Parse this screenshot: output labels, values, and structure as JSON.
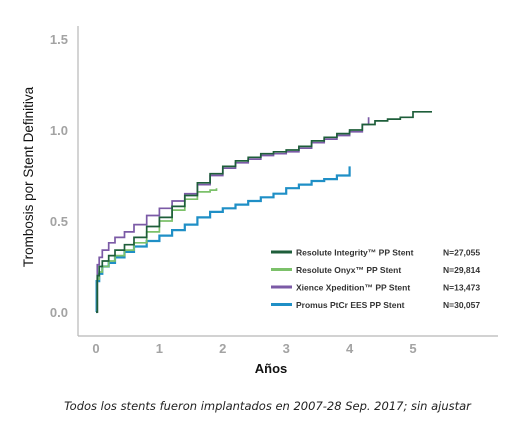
{
  "chart_data": {
    "type": "line",
    "title": "",
    "xlabel": "Años",
    "ylabel": "Trombosis por Stent Definitiva",
    "xlim": [
      0,
      5.5
    ],
    "ylim": [
      0,
      1.5
    ],
    "x_ticks": [
      0,
      1,
      2,
      3,
      4,
      5
    ],
    "x_tick_labels": [
      "0",
      "1",
      "2",
      "3",
      "4",
      "5"
    ],
    "y_ticks": [
      0.0,
      0.5,
      1.0,
      1.5
    ],
    "y_tick_labels": [
      "0.0",
      "0.5",
      "1.0",
      "1.5"
    ],
    "grid": false,
    "legend_position": "bottom-right",
    "series": [
      {
        "name": "Resolute Integrity™ PP Stent",
        "n": "N=27,055",
        "color": "#1e5e3a",
        "x": [
          0,
          0.02,
          0.05,
          0.1,
          0.2,
          0.3,
          0.45,
          0.6,
          0.8,
          1.0,
          1.2,
          1.4,
          1.6,
          1.8,
          2.0,
          2.2,
          2.4,
          2.6,
          2.8,
          3.0,
          3.2,
          3.4,
          3.6,
          3.8,
          4.0,
          4.2,
          4.4,
          4.6,
          4.8,
          5.0,
          5.3
        ],
        "y": [
          0.0,
          0.2,
          0.25,
          0.28,
          0.31,
          0.34,
          0.37,
          0.41,
          0.47,
          0.52,
          0.58,
          0.64,
          0.71,
          0.76,
          0.8,
          0.83,
          0.85,
          0.87,
          0.88,
          0.89,
          0.91,
          0.94,
          0.96,
          0.98,
          1.0,
          1.03,
          1.05,
          1.06,
          1.07,
          1.1,
          1.1
        ]
      },
      {
        "name": "Resolute Onyx™ PP Stent",
        "n": "N=29,814",
        "color": "#7cc16a",
        "x": [
          0,
          0.02,
          0.05,
          0.1,
          0.2,
          0.3,
          0.45,
          0.6,
          0.8,
          1.0,
          1.2,
          1.4,
          1.6,
          1.8,
          1.9
        ],
        "y": [
          0.0,
          0.18,
          0.22,
          0.25,
          0.28,
          0.31,
          0.34,
          0.38,
          0.44,
          0.5,
          0.56,
          0.62,
          0.66,
          0.67,
          0.68
        ]
      },
      {
        "name": "Xience Xpedition™ PP Stent",
        "n": "N=13,473",
        "color": "#7b5aa6",
        "x": [
          0,
          0.02,
          0.05,
          0.1,
          0.2,
          0.3,
          0.45,
          0.6,
          0.8,
          1.0,
          1.2,
          1.4,
          1.6,
          1.8,
          2.0,
          2.2,
          2.4,
          2.6,
          2.8,
          3.0,
          3.2,
          3.4,
          3.6,
          3.8,
          4.0,
          4.2,
          4.3
        ],
        "y": [
          0.0,
          0.26,
          0.3,
          0.34,
          0.38,
          0.41,
          0.44,
          0.48,
          0.53,
          0.57,
          0.61,
          0.65,
          0.7,
          0.75,
          0.79,
          0.82,
          0.84,
          0.86,
          0.87,
          0.88,
          0.9,
          0.93,
          0.95,
          0.97,
          0.99,
          1.03,
          1.07
        ]
      },
      {
        "name": "Promus PtCr EES PP Stent",
        "n": "N=30,057",
        "color": "#1f8fc6",
        "x": [
          0,
          0.01,
          0.05,
          0.1,
          0.2,
          0.3,
          0.45,
          0.6,
          0.8,
          1.0,
          1.2,
          1.4,
          1.6,
          1.8,
          2.0,
          2.2,
          2.4,
          2.6,
          2.8,
          3.0,
          3.2,
          3.4,
          3.6,
          3.8,
          4.0
        ],
        "y": [
          0.0,
          0.17,
          0.21,
          0.25,
          0.27,
          0.3,
          0.33,
          0.36,
          0.39,
          0.42,
          0.45,
          0.48,
          0.52,
          0.55,
          0.57,
          0.59,
          0.61,
          0.63,
          0.65,
          0.68,
          0.7,
          0.72,
          0.73,
          0.75,
          0.8
        ]
      }
    ]
  },
  "caption": "Todos los stents fueron implantados en 2007-28 Sep. 2017; sin ajustar"
}
